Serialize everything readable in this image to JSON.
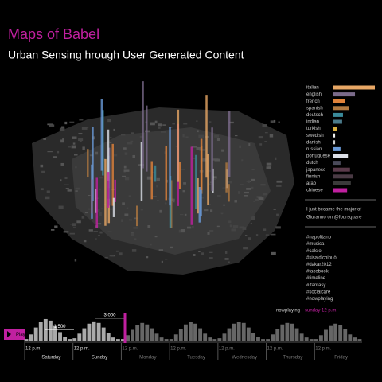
{
  "header": {
    "title": "Maps of Babel",
    "subtitle": "Urban Sensing hrough User Generated Content"
  },
  "languages": {
    "xlim": [
      0,
      100
    ],
    "items": [
      {
        "name": "italian",
        "value": 100,
        "color": "#e8a765"
      },
      {
        "name": "english",
        "value": 52,
        "color": "#7a6a8a"
      },
      {
        "name": "french",
        "value": 27,
        "color": "#e0823a"
      },
      {
        "name": "spanish",
        "value": 38,
        "color": "#b07840"
      },
      {
        "name": "deutsch",
        "value": 23,
        "color": "#3a8a9a"
      },
      {
        "name": "indian",
        "value": 21,
        "color": "#4a7a8a"
      },
      {
        "name": "turkish",
        "value": 8,
        "color": "#d8b040"
      },
      {
        "name": "swedish",
        "value": 4,
        "color": "#eeeeee"
      },
      {
        "name": "danish",
        "value": 4,
        "color": "#cccccc"
      },
      {
        "name": "russian",
        "value": 17,
        "color": "#6a9ad8"
      },
      {
        "name": "portuguese",
        "value": 35,
        "color": "#dce0e8"
      },
      {
        "name": "dutch",
        "value": 17,
        "color": "#4a4a5a"
      },
      {
        "name": "japanese",
        "value": 40,
        "color": "#5a3a4a"
      },
      {
        "name": "finnish",
        "value": 48,
        "color": "#4a3a44"
      },
      {
        "name": "arab",
        "value": 42,
        "color": "#3a3a3a"
      },
      {
        "name": "chinese",
        "value": 33,
        "color": "#c020a0"
      }
    ]
  },
  "checkin": {
    "lines": [
      "I just became the major of",
      "Giuranno on @foursquare"
    ]
  },
  "hashtags": [
    "#napolitano",
    "#musica",
    "#calcio",
    "#sisaidichipuò",
    "#dakar2012",
    "#facebook",
    "#timeline",
    "# fantasy",
    "#socialcare",
    "#nowplaying"
  ],
  "nowplaying": {
    "label": "nowplaying",
    "value": "sunday 12 p.m."
  },
  "timeline": {
    "play": "Play",
    "ylim": [
      0,
      3000
    ],
    "yticks": [
      {
        "value": 1500,
        "label": "1,500"
      },
      {
        "value": 3000,
        "label": "3,000"
      }
    ],
    "values": [
      300,
      900,
      1800,
      2500,
      2900,
      2700,
      2000,
      1200,
      600,
      300,
      400,
      1000,
      1700,
      2300,
      2600,
      2400,
      1800,
      1100,
      500,
      300,
      300,
      800,
      1500,
      2100,
      2400,
      2200,
      1700,
      1000,
      500,
      300,
      300,
      900,
      1600,
      2200,
      2500,
      2300,
      1700,
      1000,
      500,
      300,
      400,
      1000,
      1700,
      2300,
      2500,
      2400,
      1800,
      1100,
      600,
      300,
      300,
      900,
      1600,
      2200,
      2400,
      2300,
      1700,
      1000,
      500,
      300,
      300,
      800,
      1500,
      2000,
      2300,
      2100,
      1600,
      900,
      500,
      300
    ],
    "time_labels": [
      "12 p.m.",
      "12 p.m.",
      "12 p.m.",
      "12 p.m.",
      "12 p.m.",
      "12 p.m.",
      "12 p.m."
    ],
    "days": [
      "Saturday",
      "Sunday",
      "Monday",
      "Tuesday",
      "Wednesday",
      "Thursday",
      "Friday"
    ]
  }
}
